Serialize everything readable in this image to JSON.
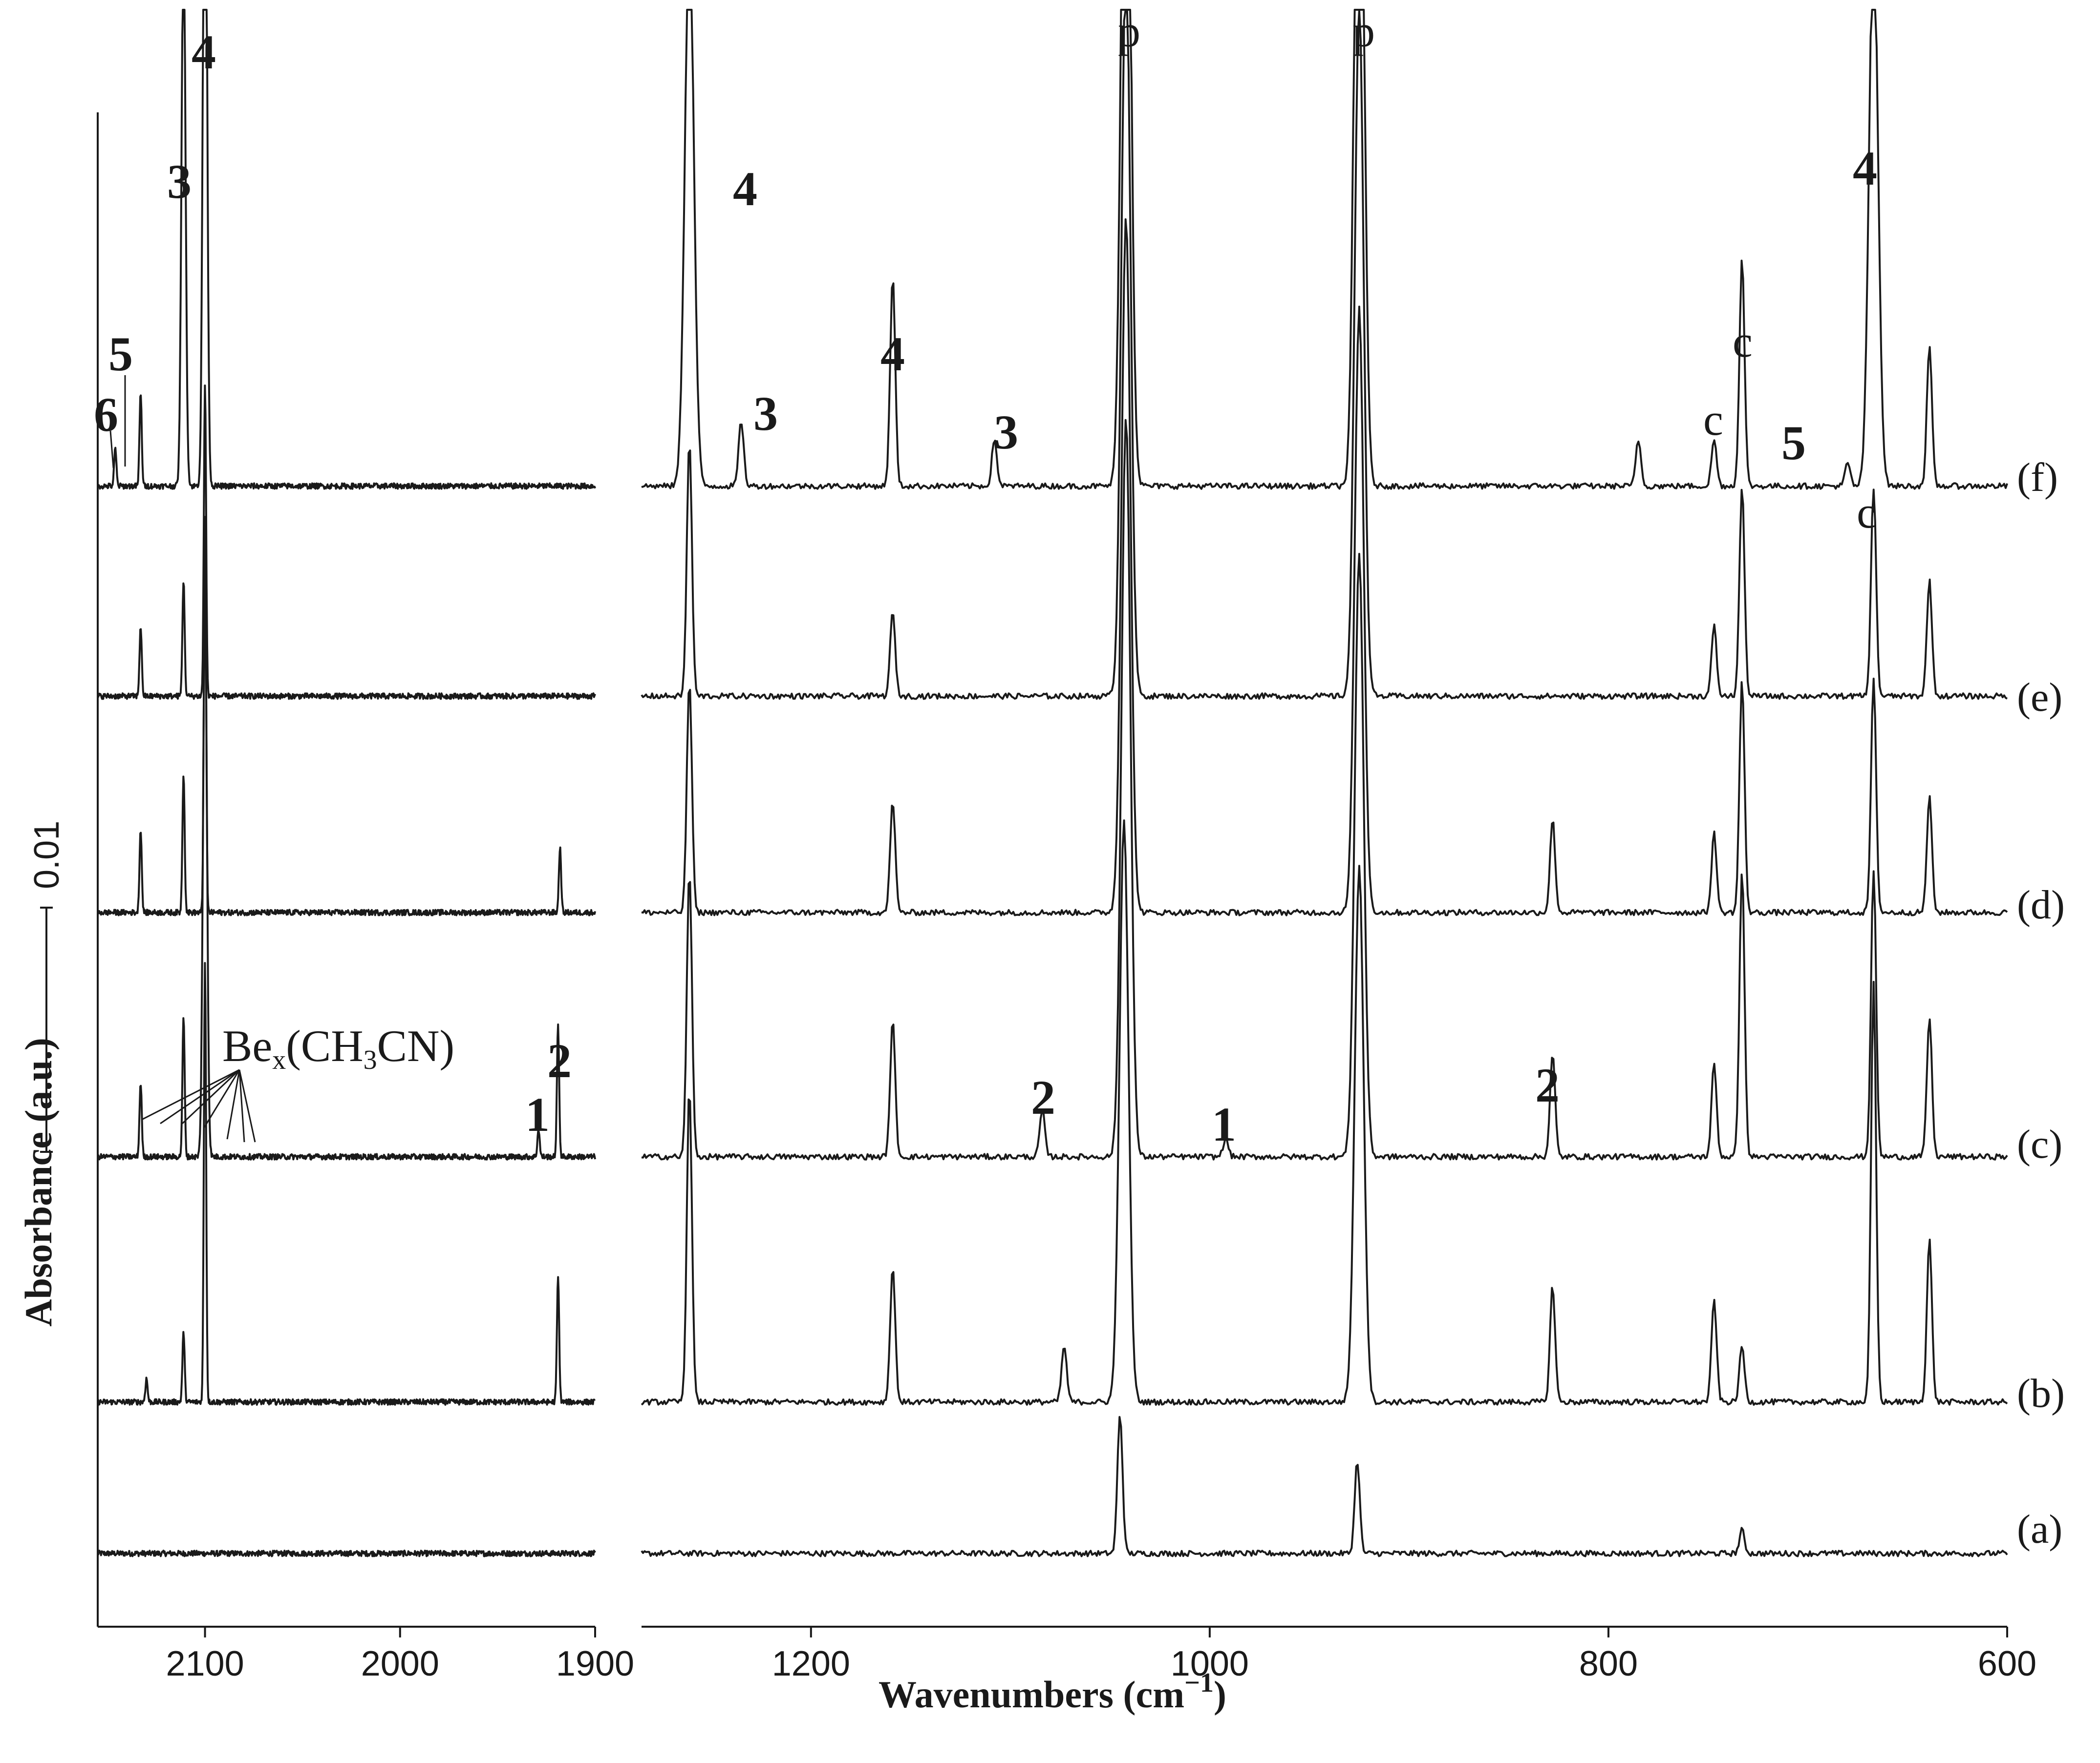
{
  "chart_data": {
    "type": "line",
    "title": "",
    "xlabel": "Wavenumbers (cm",
    "xlabel_sup": "−1",
    "xlabel_close": ")",
    "ylabel": "Absorbance (a.u.)",
    "scale_bar_label": "0.01",
    "x_reversed": true,
    "panels": [
      {
        "xlim": [
          2155,
          1900
        ],
        "ticks": [
          "2100",
          "2000",
          "1900"
        ],
        "tick_values": [
          2100,
          2000,
          1900
        ]
      },
      {
        "xlim": [
          1285,
          600
        ],
        "ticks": [
          "1200",
          "1000",
          "800",
          "600"
        ],
        "tick_values": [
          1200,
          1000,
          800,
          600
        ]
      }
    ],
    "series": [
      {
        "name": "(a)",
        "peaks": [
          [
            1045,
            0.3
          ],
          [
            926,
            0.2
          ],
          [
            733,
            0.05
          ]
        ]
      },
      {
        "name": "(b)",
        "peaks": [
          [
            2100,
            0.95
          ],
          [
            2111,
            0.15
          ],
          [
            2130,
            0.05
          ],
          [
            1919,
            0.27
          ],
          [
            1261,
            0.68
          ],
          [
            1159,
            0.29
          ],
          [
            1073,
            0.12
          ],
          [
            1043,
            1.25
          ],
          [
            925,
            1.15
          ],
          [
            828,
            0.25
          ],
          [
            747,
            0.22
          ],
          [
            733,
            0.12
          ],
          [
            667,
            0.9
          ],
          [
            639,
            0.35
          ]
        ]
      },
      {
        "name": "(c)",
        "peaks": [
          [
            2100,
            1.2
          ],
          [
            2111,
            0.3
          ],
          [
            2133,
            0.16
          ],
          [
            1929,
            0.06
          ],
          [
            1919,
            0.28
          ],
          [
            1261,
            0.62
          ],
          [
            1159,
            0.29
          ],
          [
            1084,
            0.1
          ],
          [
            1042,
            1.6
          ],
          [
            992,
            0.04
          ],
          [
            925,
            1.3
          ],
          [
            828,
            0.22
          ],
          [
            747,
            0.2
          ],
          [
            733,
            0.62
          ],
          [
            667,
            0.62
          ],
          [
            639,
            0.3
          ]
        ]
      },
      {
        "name": "(d)",
        "peaks": [
          [
            2100,
            0.85
          ],
          [
            2111,
            0.3
          ],
          [
            2133,
            0.18
          ],
          [
            1918,
            0.14
          ],
          [
            1261,
            0.5
          ],
          [
            1159,
            0.24
          ],
          [
            1042,
            1.5
          ],
          [
            925,
            1.3
          ],
          [
            828,
            0.2
          ],
          [
            747,
            0.17
          ],
          [
            733,
            0.5
          ],
          [
            667,
            0.5
          ],
          [
            639,
            0.25
          ]
        ]
      },
      {
        "name": "(e)",
        "peaks": [
          [
            2100,
            0.67
          ],
          [
            2111,
            0.25
          ],
          [
            2133,
            0.15
          ],
          [
            1261,
            0.55
          ],
          [
            1159,
            0.18
          ],
          [
            1042,
            1.6
          ],
          [
            925,
            1.5
          ],
          [
            747,
            0.15
          ],
          [
            733,
            0.45
          ],
          [
            667,
            0.45
          ],
          [
            639,
            0.25
          ]
        ]
      },
      {
        "name": "(f)",
        "peaks": [
          [
            2100,
            1.66
          ],
          [
            2111,
            1.2
          ],
          [
            2133,
            0.2
          ],
          [
            2146,
            0.08
          ],
          [
            1261,
            1.2
          ],
          [
            1235,
            0.14
          ],
          [
            1159,
            0.45
          ],
          [
            1108,
            0.1
          ],
          [
            1042,
            1.9
          ],
          [
            925,
            1.9
          ],
          [
            785,
            0.1
          ],
          [
            747,
            0.1
          ],
          [
            733,
            0.49
          ],
          [
            680,
            0.05
          ],
          [
            667,
            1.2
          ],
          [
            639,
            0.3
          ]
        ]
      }
    ]
  },
  "labels": {
    "l_f4_2100": "4",
    "l_f3_2111": "3",
    "l_f5": "5",
    "l_f6": "6",
    "l_f4_1261": "4",
    "l_f3_1235": "3",
    "l_f4_1159": "4",
    "l_f3_1108": "3",
    "l_p1": "p",
    "l_p2": "p",
    "l_c1": "c",
    "l_c2": "c",
    "l_f5_680": "5",
    "l_f4_667": "4",
    "l_e_c": "c",
    "l_c1_1929": "1",
    "l_c2_1919": "2",
    "l_c2_1084": "2",
    "l_c1_992": "1",
    "l_c2_828": "2",
    "be_main": "Be",
    "be_x": "x",
    "be_rest1": "(CH",
    "be_3": "3",
    "be_rest2": "CN)"
  }
}
